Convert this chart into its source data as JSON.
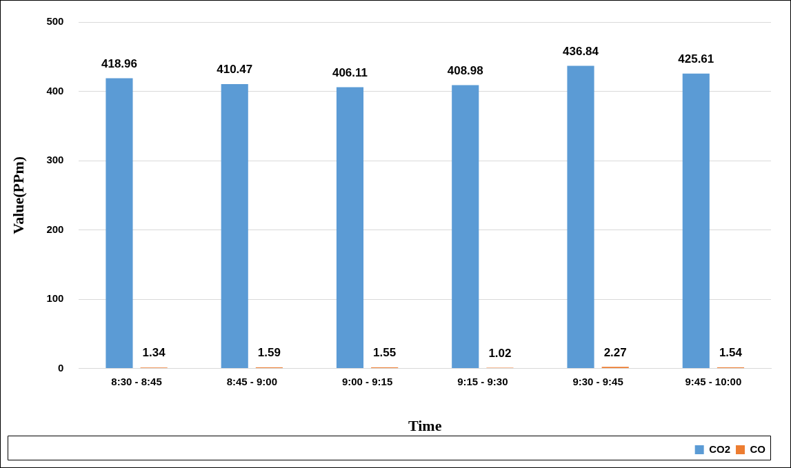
{
  "chart_data": {
    "type": "bar",
    "xlabel": "Time",
    "ylabel": "Value(PPm)",
    "categories": [
      "8:30 - 8:45",
      "8:45 - 9:00",
      "9:00 - 9:15",
      "9:15 - 9:30",
      "9:30 - 9:45",
      "9:45 - 10:00"
    ],
    "series": [
      {
        "name": "CO2",
        "color": "#5b9bd5",
        "values": [
          418.96,
          410.47,
          406.11,
          408.98,
          436.84,
          425.61
        ]
      },
      {
        "name": "CO",
        "color": "#ed7d31",
        "values": [
          1.34,
          1.59,
          1.55,
          1.02,
          2.27,
          1.54
        ]
      }
    ],
    "ylim": [
      0,
      500
    ],
    "yticks": [
      0,
      100,
      200,
      300,
      400,
      500
    ],
    "grid": "y",
    "legend": "bottom right",
    "data_labels": true
  }
}
